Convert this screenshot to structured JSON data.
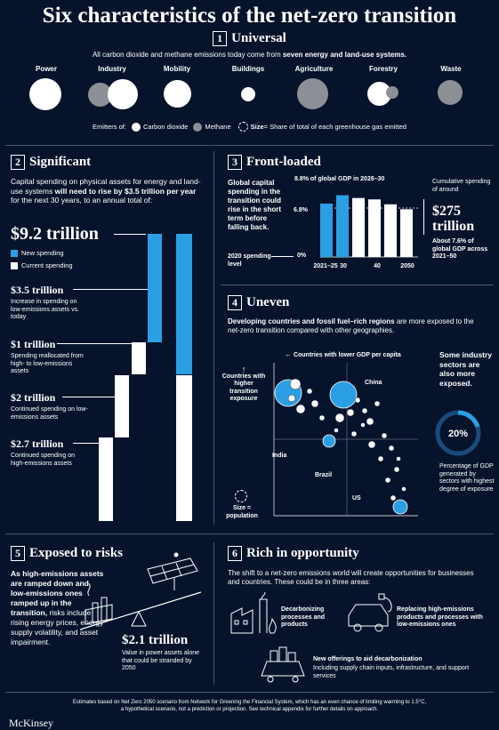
{
  "title": "Six characteristics of the net-zero transition",
  "s1": {
    "num": "1",
    "heading": "Universal",
    "sub_a": "All carbon dioxide and methane emissions today come from ",
    "sub_b": "seven energy and land-use systems.",
    "systems": [
      "Power",
      "Industry",
      "Mobility",
      "Buildings",
      "Agriculture",
      "Forestry",
      "Waste"
    ],
    "legend_emitters": "Emitters of:",
    "legend_co2": "Carbon dioxide",
    "legend_methane": "Methane",
    "legend_size_a": "Size",
    "legend_size_b": " = Share of total of each greenhouse gas emitted",
    "colors": {
      "co2": "#ffffff",
      "methane": "#8c8f96"
    }
  },
  "s2": {
    "num": "2",
    "heading": "Significant",
    "intro_a": "Capital spending on physical assets for energy and land-use systems ",
    "intro_b": "will need to rise by $3.5 trillion per year",
    "intro_c": " for the next 30 years, to an annual total of:",
    "total": "$9.2 trillion",
    "legend_new": "New spending",
    "legend_current": "Current spending",
    "items": [
      {
        "value": "$3.5 trillion",
        "desc": "Increase in spending on low-emissions assets vs. today"
      },
      {
        "value": "$1 trillion",
        "desc": "Spending reallocated from high- to low-emissions assets"
      },
      {
        "value": "$2 trillion",
        "desc": "Continued spending on low-emissions assets"
      },
      {
        "value": "$2.7 trillion",
        "desc": "Continued spending on high-emissions assets"
      }
    ],
    "colors": {
      "new": "#2a9fe3",
      "current": "#ffffff"
    }
  },
  "s3": {
    "num": "3",
    "heading": "Front-loaded",
    "left_text": "Global capital spending in the transition could rise in the short term before falling back.",
    "level_label": "2020 spending level",
    "chart_note": "8.8% of global GDP in 2026–30",
    "right_a": "Cumulative spending of around",
    "right_big": "$275 trillion",
    "right_b": "About 7.6% of global GDP across 2021–50"
  },
  "chart_data": {
    "type": "bar",
    "categories": [
      "2021–25",
      "30",
      "",
      "40",
      "",
      "2050"
    ],
    "values": [
      7.6,
      8.8,
      8.4,
      8.2,
      7.5,
      6.8
    ],
    "ytick_labels": [
      "0%",
      "6.8%"
    ],
    "xtick_labels": [
      "2021–25",
      "30",
      "40",
      "2050"
    ],
    "reference_value": 6.8,
    "ylim": [
      0,
      9.5
    ],
    "highlight_colors": [
      "#2a9fe3",
      "#2a9fe3",
      "#ffffff",
      "#ffffff",
      "#ffffff",
      "#ffffff"
    ]
  },
  "s4": {
    "num": "4",
    "heading": "Uneven",
    "intro_a": "Developing countries and fossil fuel–rich regions",
    "intro_b": " are more exposed to the net-zero transition compared with other geographies.",
    "x_arrow": "Countries with lower GDP per capita",
    "y_arrow": "Countries with higher transition exposure",
    "labels": {
      "china": "China",
      "india": "India",
      "brazil": "Brazil",
      "us": "US"
    },
    "size_label": "Size = population",
    "side_a": "Some industry sectors are also more exposed.",
    "pct": "20%",
    "pct_fraction": 0.2,
    "side_b": "Percentage of GDP generated by sectors with highest degree of exposure"
  },
  "s5": {
    "num": "5",
    "heading": "Exposed to risks",
    "text_a": "As high-emissions assets are ramped down and low-emissions ones ramped up in the transition,",
    "text_b": " risks include rising energy prices, energy supply volatility, and asset impairment.",
    "big": "$2.1 trillion",
    "big_desc": "Value in power assets alone that could be stranded by 2050"
  },
  "s6": {
    "num": "6",
    "heading": "Rich in opportunity",
    "intro": "The shift to a net-zero emissions world will create opportunities for businesses and countries. These could be in three areas:",
    "area1": "Decarbonizing processes and products",
    "area2": "Replacing high-emissions products and processes with low-emissions ones",
    "area3_a": "New offerings to aid decarbonization",
    "area3_b": "Including supply chain inputs, infrastructure, and support services"
  },
  "footer": {
    "line1": "Estimates based on Net Zero 2050 scenario from Network for Greening the Financial System, which has an even chance of limiting warming to 1.5°C,",
    "line2": "a hypothetical scenario, not a prediction or projection. See technical appendix for further details on approach.",
    "logo": "McKinsey"
  }
}
